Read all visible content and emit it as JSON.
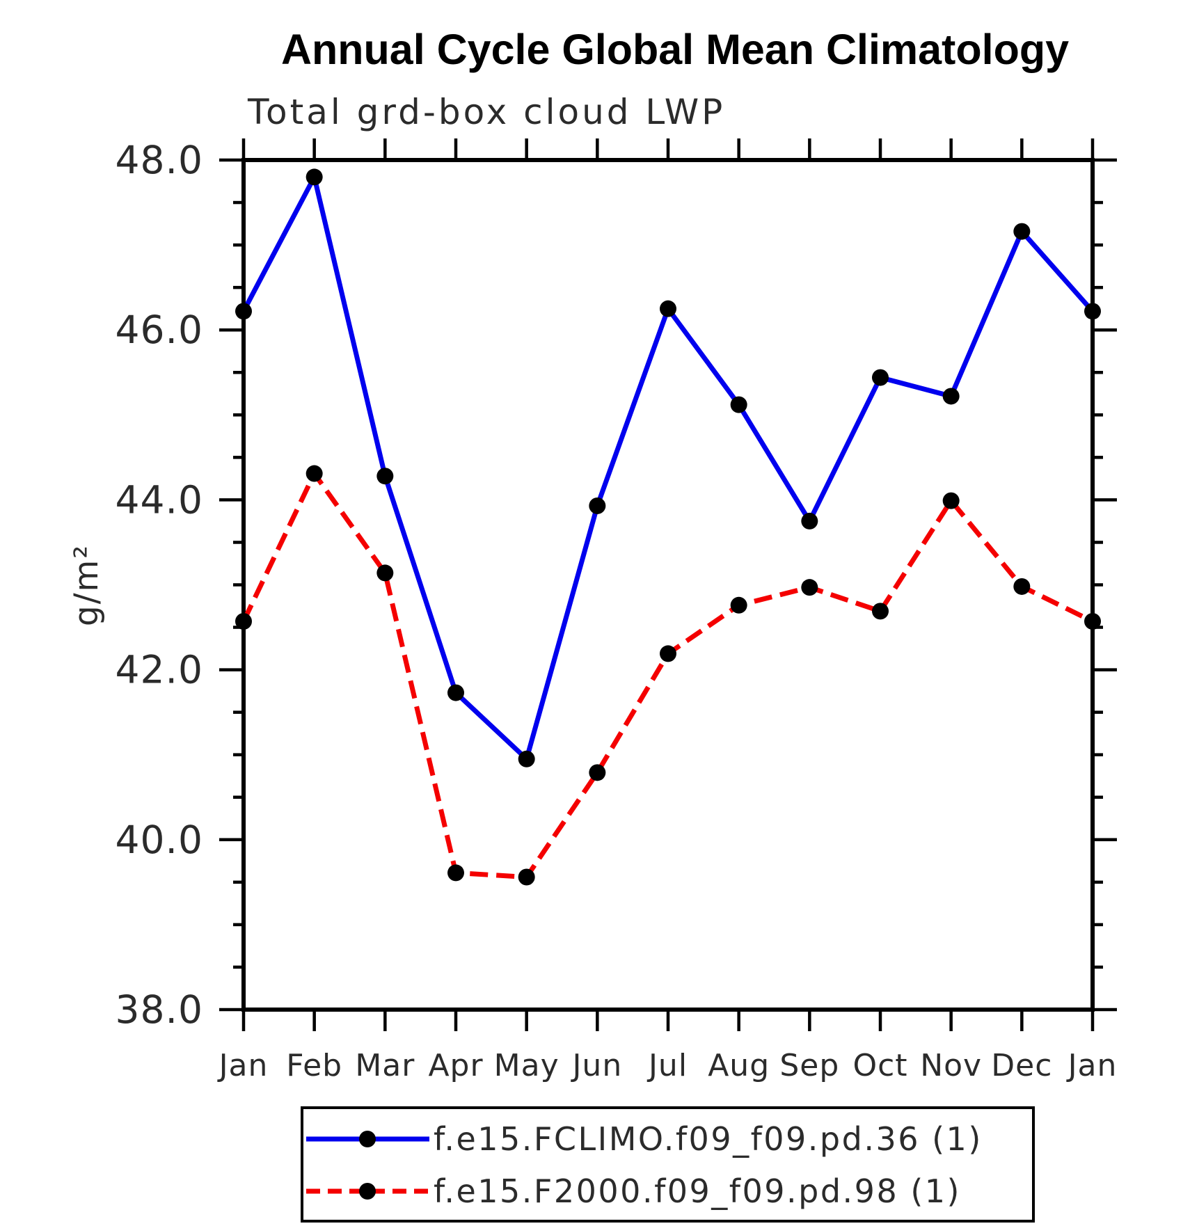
{
  "page": {
    "background": "#ffffff"
  },
  "chart_data": {
    "type": "line",
    "title": "Annual Cycle Global Mean Climatology",
    "subtitle": "Total grd-box cloud LWP",
    "ylabel": "g/m²",
    "x_categories": [
      "Jan",
      "Feb",
      "Mar",
      "Apr",
      "May",
      "Jun",
      "Jul",
      "Aug",
      "Sep",
      "Oct",
      "Nov",
      "Dec",
      "Jan"
    ],
    "ylim": [
      38.0,
      48.0
    ],
    "y_major_ticks": {
      "values": [
        48.0,
        46.0,
        44.0,
        42.0,
        40.0,
        38.0
      ],
      "labels": [
        "48.0",
        "46.0",
        "44.0",
        "42.0",
        "40.0",
        "38.0"
      ]
    },
    "y_minor_step": 0.5,
    "grid": "off",
    "legend_position": "bottom",
    "axis_color": "#000000",
    "marker_color": "#000000",
    "series": [
      {
        "name": "f.e15.FCLIMO.f09_f09.pd.36 (1)",
        "color": "#0000ee",
        "line_style": "solid",
        "marker": "filled-circle",
        "values": [
          46.22,
          47.8,
          44.28,
          41.73,
          40.95,
          43.93,
          46.25,
          45.12,
          43.75,
          45.44,
          45.22,
          47.16,
          46.22
        ]
      },
      {
        "name": "f.e15.F2000.f09_f09.pd.98 (1)",
        "color": "#f40000",
        "line_style": "dashed",
        "marker": "filled-circle",
        "values": [
          42.57,
          44.31,
          43.14,
          39.61,
          39.56,
          40.79,
          42.19,
          42.76,
          42.97,
          42.69,
          43.99,
          42.98,
          42.57
        ]
      }
    ]
  }
}
